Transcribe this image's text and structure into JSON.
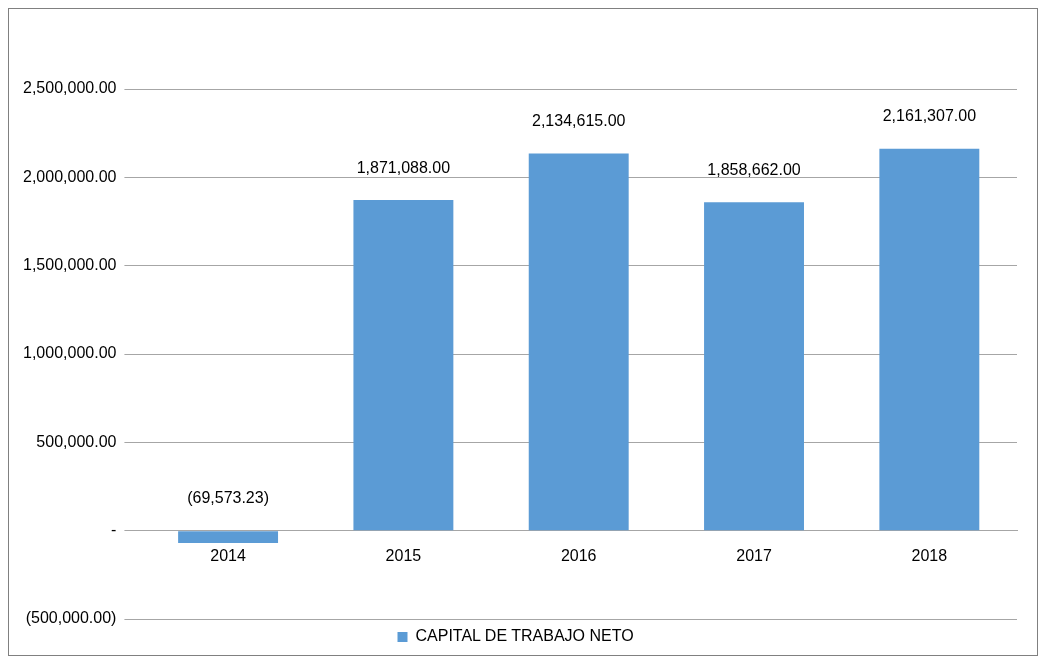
{
  "chart_data": {
    "type": "bar",
    "categories": [
      "2014",
      "2015",
      "2016",
      "2017",
      "2018"
    ],
    "series": [
      {
        "name": "CAPITAL DE TRABAJO NETO",
        "color": "#5b9bd5",
        "values": [
          -69573.23,
          1871088,
          2134615,
          1858662,
          2161307
        ],
        "value_labels": [
          "(69,573.23)",
          "1,871,088.00",
          "2,134,615.00",
          "1,858,662.00",
          "2,161,307.00"
        ]
      }
    ],
    "ylim": [
      -500000,
      2500000
    ],
    "yticks": [
      {
        "value": -500000,
        "label": "(500,000.00)"
      },
      {
        "value": 0,
        "label": "-"
      },
      {
        "value": 500000,
        "label": "500,000.00"
      },
      {
        "value": 1000000,
        "label": "1,000,000.00"
      },
      {
        "value": 1500000,
        "label": "1,500,000.00"
      },
      {
        "value": 2000000,
        "label": "2,000,000.00"
      },
      {
        "value": 2500000,
        "label": "2,500,000.00"
      }
    ],
    "grid": "y",
    "legend": "bottom"
  }
}
